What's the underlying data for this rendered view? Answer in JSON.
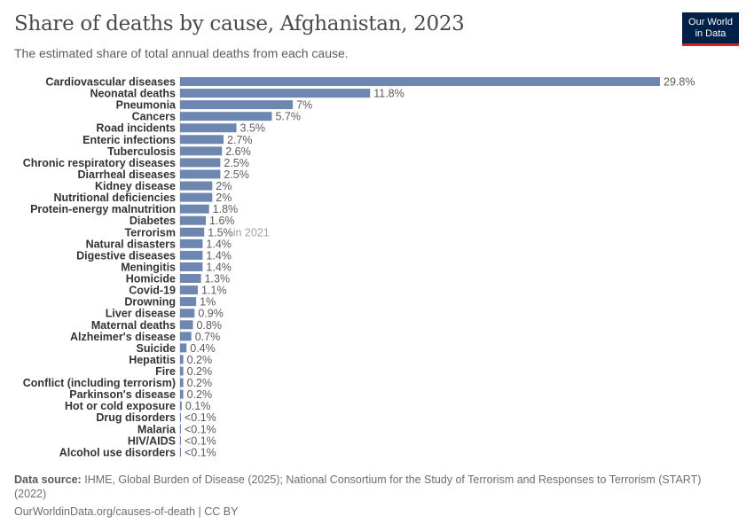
{
  "header": {
    "title": "Share of deaths by cause, Afghanistan, 2023",
    "subtitle": "The estimated share of total annual deaths from each cause.",
    "logo_text": [
      "Our World",
      "in Data"
    ]
  },
  "colors": {
    "bar": "#6d87b0",
    "label": "#333333",
    "value": "#5b5b5b",
    "annotation": "#a1a1a1",
    "logo_bg": "#002147",
    "logo_accent": "#ce261e"
  },
  "chart_data": {
    "type": "bar",
    "orientation": "horizontal",
    "unit": "%",
    "categories": [
      "Cardiovascular diseases",
      "Neonatal deaths",
      "Pneumonia",
      "Cancers",
      "Road incidents",
      "Enteric infections",
      "Tuberculosis",
      "Chronic respiratory diseases",
      "Diarrheal diseases",
      "Kidney disease",
      "Nutritional deficiencies",
      "Protein-energy malnutrition",
      "Diabetes",
      "Terrorism",
      "Natural disasters",
      "Digestive diseases",
      "Meningitis",
      "Homicide",
      "Covid-19",
      "Drowning",
      "Liver disease",
      "Maternal deaths",
      "Alzheimer's disease",
      "Suicide",
      "Hepatitis",
      "Fire",
      "Conflict (including terrorism)",
      "Parkinson's disease",
      "Hot or cold exposure",
      "Drug disorders",
      "Malaria",
      "HIV/AIDS",
      "Alcohol use disorders"
    ],
    "values": [
      29.8,
      11.8,
      7,
      5.7,
      3.5,
      2.7,
      2.6,
      2.5,
      2.5,
      2,
      2,
      1.8,
      1.6,
      1.5,
      1.4,
      1.4,
      1.4,
      1.3,
      1.1,
      1,
      0.9,
      0.8,
      0.7,
      0.4,
      0.2,
      0.2,
      0.2,
      0.2,
      0.1,
      0.05,
      0.05,
      0.05,
      0.03
    ],
    "value_labels": [
      "29.8%",
      "11.8%",
      "7%",
      "5.7%",
      "3.5%",
      "2.7%",
      "2.6%",
      "2.5%",
      "2.5%",
      "2%",
      "2%",
      "1.8%",
      "1.6%",
      "1.5%",
      "1.4%",
      "1.4%",
      "1.4%",
      "1.3%",
      "1.1%",
      "1%",
      "0.9%",
      "0.8%",
      "0.7%",
      "0.4%",
      "0.2%",
      "0.2%",
      "0.2%",
      "0.2%",
      "0.1%",
      "<0.1%",
      "<0.1%",
      "<0.1%",
      "<0.1%"
    ],
    "annotations": {
      "Terrorism": "in 2021"
    },
    "xlim": [
      0,
      29.8
    ],
    "grid": false
  },
  "footer": {
    "source_label": "Data source:",
    "source_text": "IHME, Global Burden of Disease (2025); National Consortium for the Study of Terrorism and Responses to Terrorism (START) (2022)",
    "url": "OurWorldinData.org/causes-of-death | CC BY"
  }
}
